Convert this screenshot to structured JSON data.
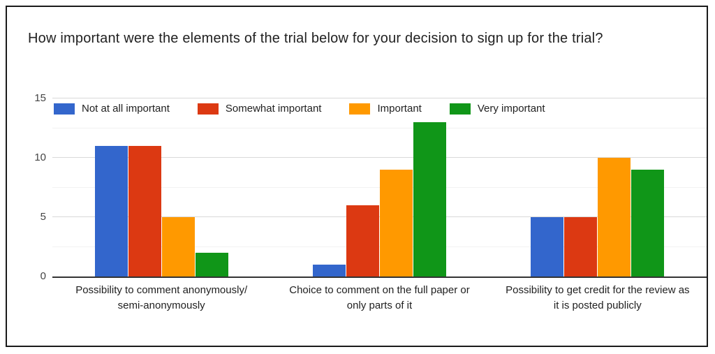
{
  "title": "How important were the elements of the trial below for your decision to sign up for the trial?",
  "chart_data": {
    "type": "bar",
    "title": "How important were the elements of the trial below for your decision to sign up for the trial?",
    "categories": [
      "Possibility to comment anonymously/ semi-anonymously",
      "Choice to comment on the full paper or only parts of it",
      "Possibility to get credit for the review as it is posted publicly"
    ],
    "category_lines": [
      [
        "Possibility to comment anonymously/",
        "semi-anonymously"
      ],
      [
        "Choice to comment on the full paper or",
        "only parts of it"
      ],
      [
        "Possibility to get credit for the review as",
        "it is posted publicly"
      ]
    ],
    "series": [
      {
        "name": "Not at all important",
        "color": "#3366CC",
        "values": [
          11,
          1,
          5
        ]
      },
      {
        "name": "Somewhat important",
        "color": "#DC3912",
        "values": [
          11,
          6,
          5
        ]
      },
      {
        "name": "Important",
        "color": "#FF9900",
        "values": [
          5,
          9,
          10
        ]
      },
      {
        "name": "Very important",
        "color": "#109618",
        "values": [
          2,
          13,
          9
        ]
      }
    ],
    "ylim": [
      0,
      15
    ],
    "yticks": [
      0,
      5,
      10,
      15
    ],
    "minor_ticks": [
      2.5,
      7.5,
      12.5
    ],
    "grid": true,
    "legend_position": "top-left-inside",
    "colors": {
      "major_gridline": "#d9d9d9",
      "minor_gridline": "#f2f2f2",
      "baseline": "#333333",
      "frame_border": "#1a1a1a",
      "axis_text": "#444444",
      "label_text": "#212121"
    }
  }
}
